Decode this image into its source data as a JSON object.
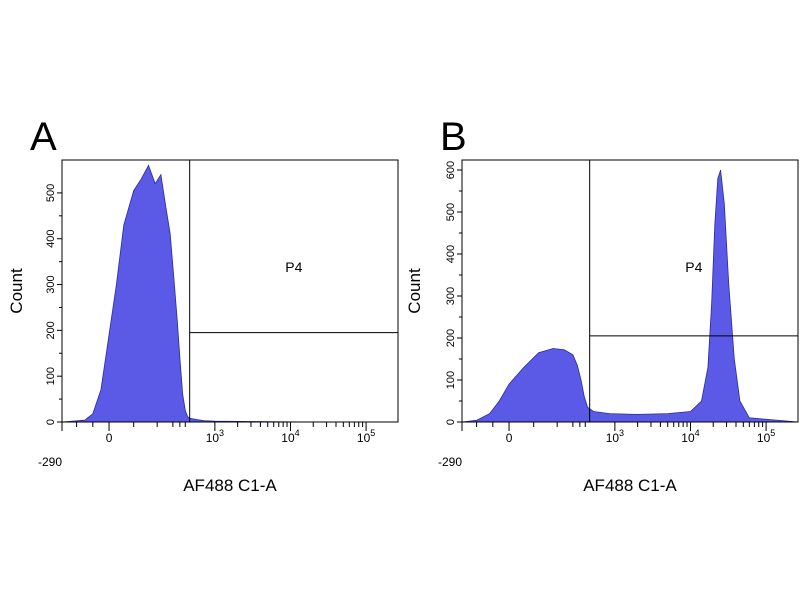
{
  "chart_data": [
    {
      "type": "area",
      "panel_label": "A",
      "xlabel": "AF488 C1-A",
      "ylabel": "Count",
      "ylim": [
        0,
        550
      ],
      "yticks": [
        0,
        100,
        200,
        300,
        400,
        500
      ],
      "x_scale": "biexponential",
      "xlim": [
        -290,
        150000
      ],
      "xtick_labels": [
        {
          "value": -290,
          "text": "-290"
        },
        {
          "value": 0,
          "text": "0"
        },
        {
          "value": 1000,
          "base": "10",
          "exp": "3"
        },
        {
          "value": 10000,
          "base": "10",
          "exp": "4"
        },
        {
          "value": 100000,
          "base": "10",
          "exp": "5"
        }
      ],
      "gate": {
        "name": "P4",
        "x_min": 600,
        "y": 195
      },
      "fill_color": "#5a5ae6",
      "series": [
        {
          "x": [
            -290,
            -150,
            -100,
            -50,
            0,
            30,
            60,
            100,
            130,
            160,
            190,
            220,
            250,
            280,
            320,
            360,
            400,
            450,
            500,
            550,
            600,
            700,
            800,
            1000,
            3000,
            20000,
            150000
          ],
          "y": [
            0,
            4,
            18,
            70,
            190,
            300,
            430,
            505,
            530,
            560,
            520,
            540,
            470,
            410,
            300,
            220,
            140,
            60,
            25,
            12,
            8,
            5,
            3,
            2,
            1,
            0,
            0
          ]
        }
      ]
    },
    {
      "type": "area",
      "panel_label": "B",
      "xlabel": "AF488 C1-A",
      "ylabel": "Count",
      "ylim": [
        0,
        600
      ],
      "yticks": [
        0,
        100,
        200,
        300,
        400,
        500,
        600
      ],
      "x_scale": "biexponential",
      "xlim": [
        -290,
        150000
      ],
      "xtick_labels": [
        {
          "value": -290,
          "text": "-290"
        },
        {
          "value": 0,
          "text": "0"
        },
        {
          "value": 1000,
          "base": "10",
          "exp": "3"
        },
        {
          "value": 10000,
          "base": "10",
          "exp": "4"
        },
        {
          "value": 100000,
          "base": "10",
          "exp": "5"
        }
      ],
      "gate": {
        "name": "P4",
        "x_min": 600,
        "y": 205
      },
      "fill_color": "#5a5ae6",
      "series": [
        {
          "x": [
            -290,
            -200,
            -120,
            -60,
            0,
            60,
            120,
            180,
            240,
            300,
            360,
            420,
            480,
            550,
            650,
            900,
            2000,
            5000,
            10000,
            14000,
            17000,
            19000,
            21000,
            23000,
            25000,
            28000,
            32000,
            38000,
            45000,
            60000,
            150000
          ],
          "y": [
            0,
            4,
            20,
            50,
            90,
            130,
            165,
            175,
            172,
            160,
            135,
            100,
            60,
            35,
            25,
            20,
            18,
            20,
            25,
            50,
            130,
            280,
            470,
            580,
            600,
            520,
            330,
            150,
            50,
            10,
            0
          ]
        }
      ]
    }
  ]
}
